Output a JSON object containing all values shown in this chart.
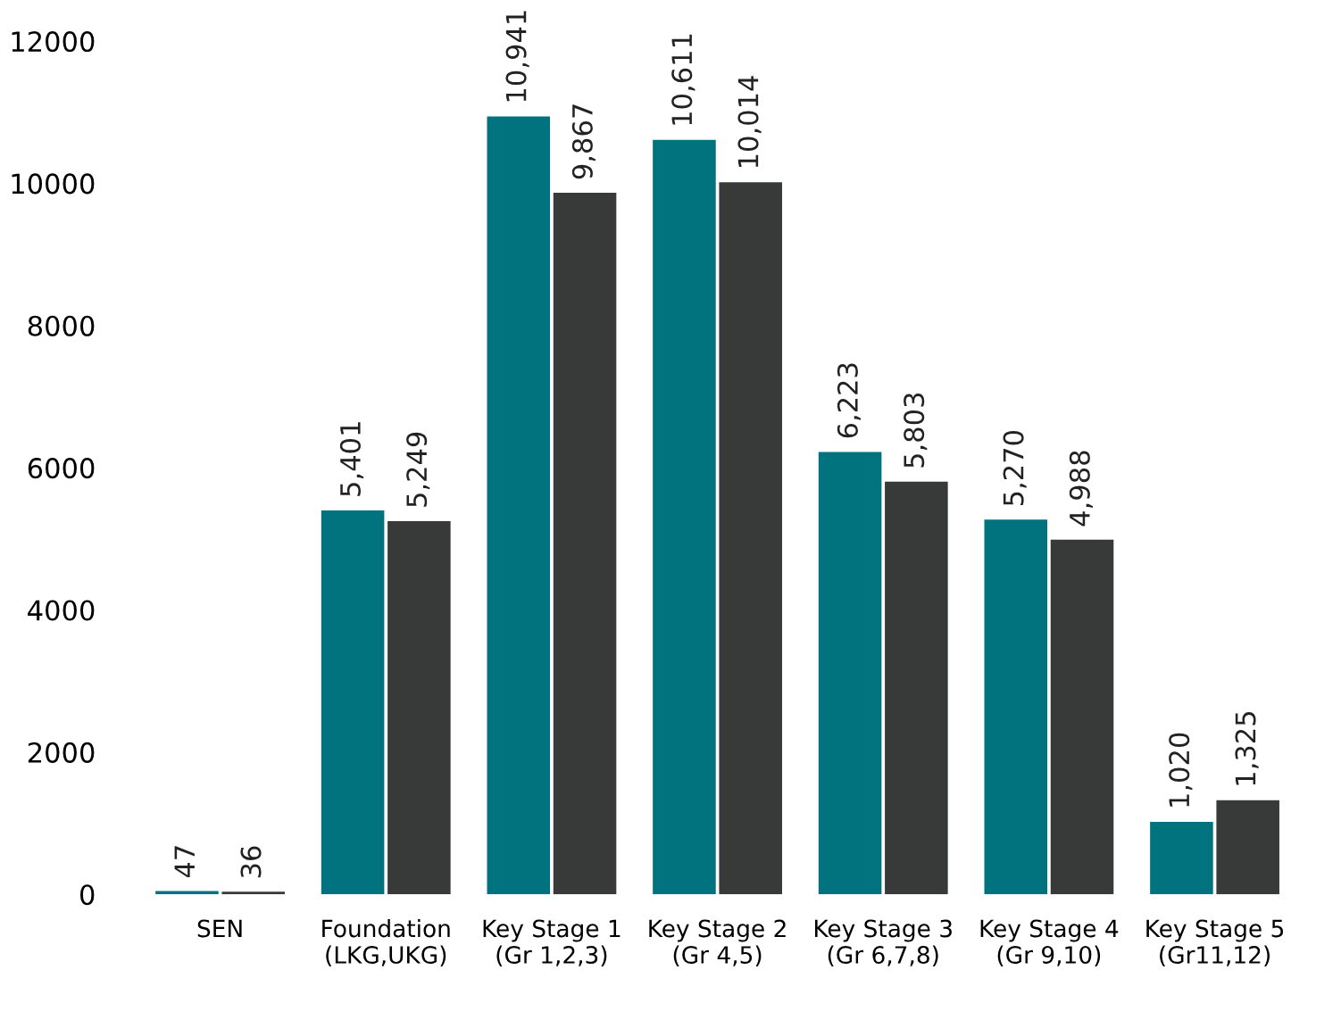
{
  "chart_data": {
    "type": "bar",
    "categories": [
      "SEN",
      "Foundation\n(LKG,UKG)",
      "Key Stage 1\n(Gr 1,2,3)",
      "Key Stage 2\n(Gr 4,5)",
      "Key Stage 3\n(Gr 6,7,8)",
      "Key Stage 4\n(Gr 9,10)",
      "Key Stage 5\n(Gr11,12)"
    ],
    "series": [
      {
        "color": "#00737f",
        "values": [
          47,
          5401,
          10941,
          10611,
          6223,
          5270,
          1020
        ],
        "value_labels": [
          "47",
          "5,401",
          "10,941",
          "10,611",
          "6,223",
          "5,270",
          "1,020"
        ]
      },
      {
        "color": "#383a3a",
        "values": [
          36,
          5249,
          9867,
          10014,
          5803,
          4988,
          1325
        ],
        "value_labels": [
          "36",
          "5,249",
          "9,867",
          "10,014",
          "5,803",
          "4,988",
          "1,325"
        ]
      }
    ],
    "ylim": [
      0,
      12000
    ],
    "yticks": [
      0,
      2000,
      4000,
      6000,
      8000,
      10000,
      12000
    ],
    "grid": false,
    "legend": false
  }
}
